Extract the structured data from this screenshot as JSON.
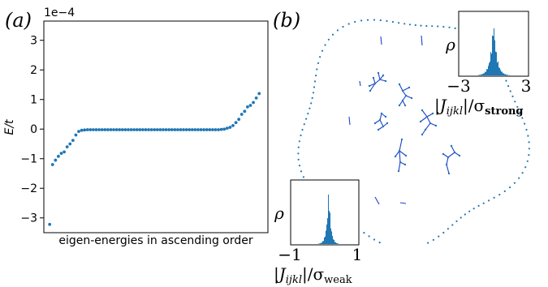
{
  "panel_a": {
    "label": "(a)",
    "exponent_label": "1e−4",
    "ylabel": "E/t",
    "xlabel": "eigen-energies in ascending order",
    "point_color": "#1f77b4"
  },
  "panel_b": {
    "label": "(b)",
    "edge_color": "#1f3fcf",
    "dot_color": "#1f77b4",
    "hist_color": "#1f77b4",
    "inset_strong": {
      "ylabel": "ρ",
      "tick_min": "−3",
      "tick_max": "3",
      "xlabel_main": "|J",
      "xlabel_sub": "ijkl",
      "xlabel_rest": "|/σ",
      "xlabel_sigma_sub": "strong"
    },
    "inset_weak": {
      "ylabel": "ρ",
      "tick_min": "−1",
      "tick_max": "1",
      "xlabel_main": "|J",
      "xlabel_sub": "ijkl",
      "xlabel_rest": "|/σ",
      "xlabel_sigma_sub": "weak"
    }
  },
  "chart_data": {
    "type": "scatter",
    "title": "",
    "xlabel": "eigen-energies in ascending order",
    "ylabel": "E/t",
    "y_scale_factor": "1e-4",
    "yticks": [
      -3,
      -2,
      -1,
      0,
      1,
      2,
      3
    ],
    "ytick_labels": [
      "−3",
      "−2",
      "−1",
      "0",
      "1",
      "2",
      "3"
    ],
    "ylim": [
      -3.5,
      3.65
    ],
    "xlim": [
      -2,
      75
    ],
    "grid": false,
    "x": [
      0,
      1,
      2,
      3,
      4,
      5,
      6,
      7,
      8,
      9,
      10,
      11,
      12,
      13,
      14,
      15,
      16,
      17,
      18,
      19,
      20,
      21,
      22,
      23,
      24,
      25,
      26,
      27,
      28,
      29,
      30,
      31,
      32,
      33,
      34,
      35,
      36,
      37,
      38,
      39,
      40,
      41,
      42,
      43,
      44,
      45,
      46,
      47,
      48,
      49,
      50,
      51,
      52,
      53,
      54,
      55,
      56,
      57,
      58,
      59,
      60,
      61,
      62,
      63,
      64,
      65,
      66,
      67,
      68,
      69,
      70,
      71,
      72
    ],
    "y": [
      -3.22,
      -1.2,
      -1.05,
      -0.92,
      -0.82,
      -0.77,
      -0.6,
      -0.5,
      -0.38,
      -0.2,
      -0.08,
      -0.04,
      -0.03,
      -0.02,
      -0.02,
      -0.02,
      -0.02,
      -0.02,
      -0.02,
      -0.02,
      -0.02,
      -0.02,
      -0.02,
      -0.02,
      -0.02,
      -0.02,
      -0.02,
      -0.02,
      -0.02,
      -0.02,
      -0.02,
      -0.02,
      -0.02,
      -0.02,
      -0.02,
      -0.02,
      -0.02,
      -0.02,
      -0.02,
      -0.02,
      -0.02,
      -0.02,
      -0.02,
      -0.02,
      -0.02,
      -0.02,
      -0.02,
      -0.02,
      -0.02,
      -0.02,
      -0.02,
      -0.02,
      -0.02,
      -0.02,
      -0.02,
      -0.02,
      -0.02,
      -0.02,
      -0.02,
      -0.01,
      0.0,
      0.03,
      0.06,
      0.12,
      0.22,
      0.33,
      0.5,
      0.6,
      0.75,
      0.8,
      0.9,
      1.05,
      1.2
    ]
  }
}
